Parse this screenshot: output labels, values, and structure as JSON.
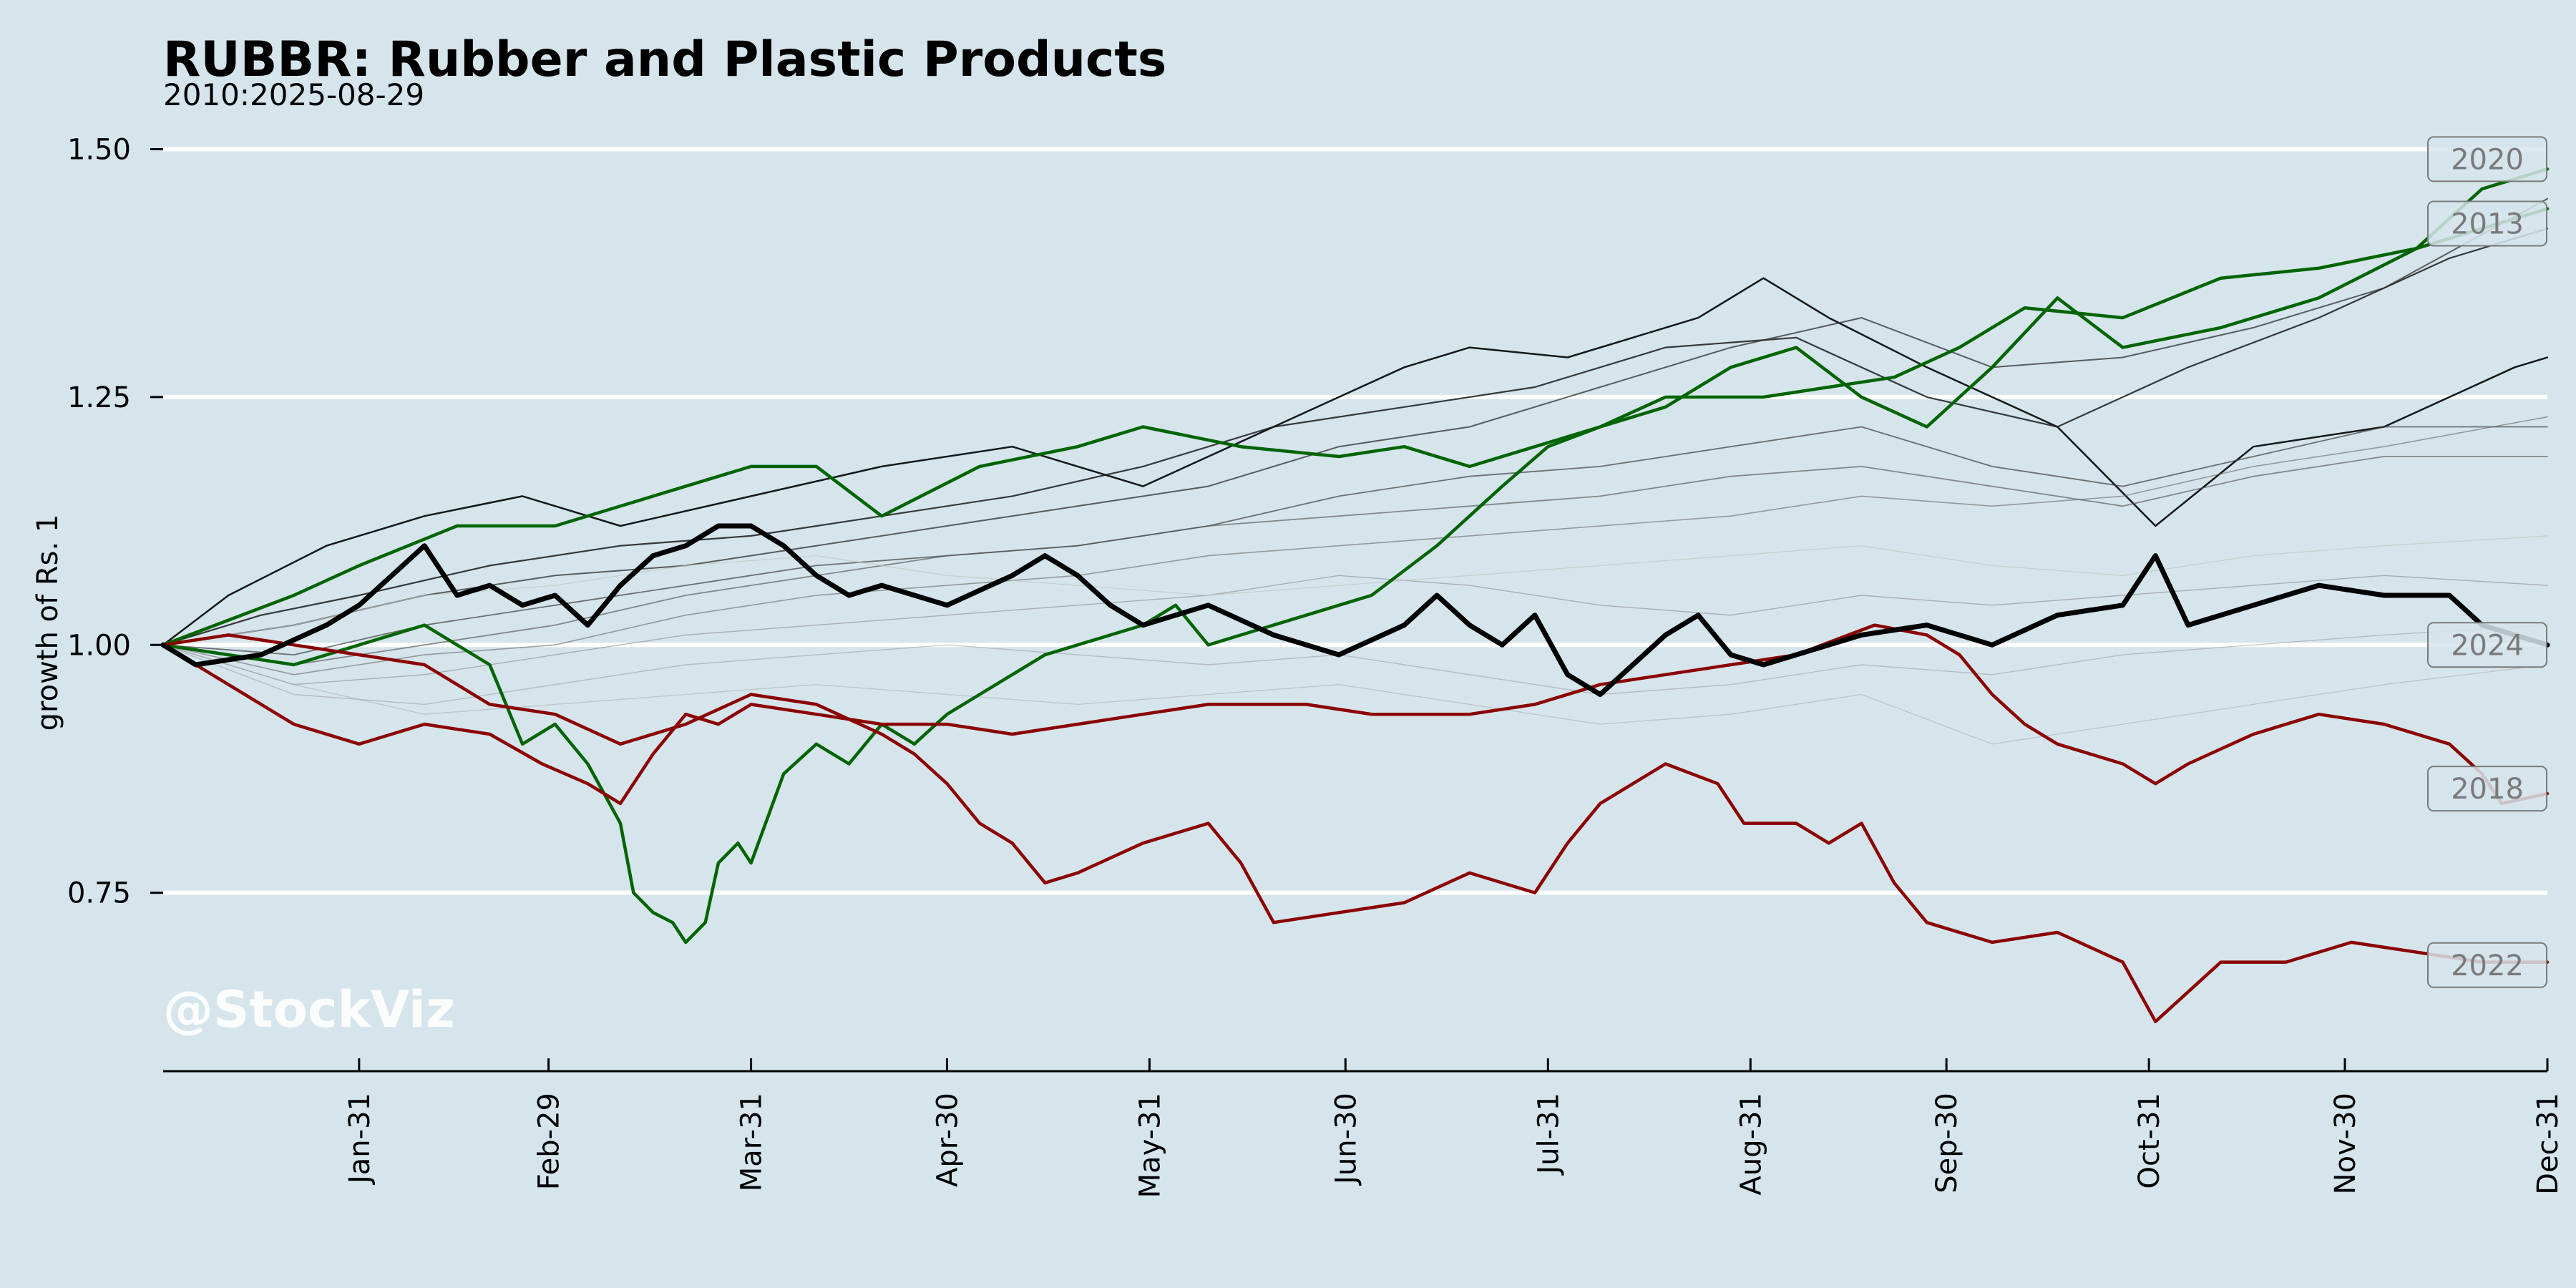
{
  "chart_data": {
    "type": "line",
    "title": "RUBBR: Rubber and Plastic Products",
    "subtitle": "2010:2025-08-29",
    "xlabel": "",
    "ylabel": "growth of Rs. 1",
    "xlim": [
      0,
      365
    ],
    "ylim": [
      0.57,
      1.6
    ],
    "yticks": [
      {
        "value": 0.75,
        "label": "0.75"
      },
      {
        "value": 1.0,
        "label": "1.00"
      },
      {
        "value": 1.25,
        "label": "1.25"
      },
      {
        "value": 1.5,
        "label": "1.50"
      }
    ],
    "xticks": [
      {
        "day": 30,
        "label": "Jan-31"
      },
      {
        "day": 59,
        "label": "Feb-29"
      },
      {
        "day": 90,
        "label": "Mar-31"
      },
      {
        "day": 120,
        "label": "Apr-30"
      },
      {
        "day": 151,
        "label": "May-31"
      },
      {
        "day": 181,
        "label": "Jun-30"
      },
      {
        "day": 212,
        "label": "Jul-31"
      },
      {
        "day": 243,
        "label": "Aug-31"
      },
      {
        "day": 273,
        "label": "Sep-30"
      },
      {
        "day": 304,
        "label": "Oct-31"
      },
      {
        "day": 334,
        "label": "Nov-30"
      },
      {
        "day": 365,
        "label": "Dec-31"
      }
    ],
    "grid": "horizontal",
    "watermark": "@StockViz",
    "colors": {
      "background": "#d6e5ec",
      "up": "#006400",
      "down": "#8b0000",
      "neutral": "#000000",
      "grid": "#ffffff"
    },
    "series": [
      {
        "name": "",
        "color": "#000000",
        "width": 2.5,
        "opacity": 0.9,
        "x": [
          0,
          10,
          25,
          40,
          55,
          70,
          90,
          110,
          130,
          150,
          170,
          190,
          200,
          215,
          235,
          245,
          255,
          270,
          290,
          305,
          320,
          340,
          360,
          365
        ],
        "y": [
          1.0,
          1.05,
          1.1,
          1.13,
          1.15,
          1.12,
          1.15,
          1.18,
          1.2,
          1.16,
          1.22,
          1.28,
          1.3,
          1.29,
          1.33,
          1.37,
          1.33,
          1.28,
          1.22,
          1.12,
          1.2,
          1.22,
          1.28,
          1.29
        ]
      },
      {
        "name": "",
        "color": "#1a1a1a",
        "width": 2.2,
        "opacity": 0.85,
        "x": [
          0,
          15,
          30,
          50,
          70,
          90,
          110,
          130,
          150,
          170,
          190,
          210,
          230,
          250,
          270,
          290,
          310,
          330,
          350,
          365
        ],
        "y": [
          1.0,
          1.03,
          1.05,
          1.08,
          1.1,
          1.11,
          1.13,
          1.15,
          1.18,
          1.22,
          1.24,
          1.26,
          1.3,
          1.31,
          1.25,
          1.22,
          1.28,
          1.33,
          1.39,
          1.42
        ]
      },
      {
        "name": "",
        "color": "#2e2e2e",
        "width": 2.0,
        "opacity": 0.75,
        "x": [
          0,
          20,
          40,
          60,
          80,
          100,
          120,
          140,
          160,
          180,
          200,
          220,
          240,
          260,
          280,
          300,
          320,
          340,
          365
        ],
        "y": [
          1.0,
          1.02,
          1.05,
          1.07,
          1.08,
          1.1,
          1.12,
          1.14,
          1.16,
          1.2,
          1.22,
          1.26,
          1.3,
          1.33,
          1.28,
          1.29,
          1.32,
          1.36,
          1.45
        ]
      },
      {
        "name": "",
        "color": "#3d3d3d",
        "width": 1.8,
        "opacity": 0.7,
        "x": [
          0,
          20,
          40,
          60,
          80,
          100,
          120,
          140,
          160,
          180,
          200,
          220,
          240,
          260,
          280,
          300,
          320,
          340,
          365
        ],
        "y": [
          1.0,
          0.99,
          1.02,
          1.04,
          1.06,
          1.08,
          1.09,
          1.1,
          1.12,
          1.15,
          1.17,
          1.18,
          1.2,
          1.22,
          1.18,
          1.16,
          1.19,
          1.22,
          1.22
        ]
      },
      {
        "name": "",
        "color": "#555555",
        "width": 1.8,
        "opacity": 0.65,
        "x": [
          0,
          20,
          40,
          60,
          80,
          100,
          120,
          140,
          160,
          180,
          200,
          220,
          240,
          260,
          280,
          300,
          320,
          340,
          365
        ],
        "y": [
          1.0,
          0.98,
          1.0,
          1.02,
          1.05,
          1.07,
          1.09,
          1.1,
          1.12,
          1.13,
          1.14,
          1.15,
          1.17,
          1.18,
          1.16,
          1.14,
          1.17,
          1.19,
          1.19
        ]
      },
      {
        "name": "",
        "color": "#666666",
        "width": 1.6,
        "opacity": 0.6,
        "x": [
          0,
          20,
          40,
          60,
          80,
          100,
          120,
          140,
          160,
          180,
          200,
          220,
          240,
          260,
          280,
          300,
          320,
          340,
          365
        ],
        "y": [
          1.0,
          0.97,
          0.99,
          1.0,
          1.03,
          1.05,
          1.06,
          1.07,
          1.09,
          1.1,
          1.11,
          1.12,
          1.13,
          1.15,
          1.14,
          1.15,
          1.18,
          1.2,
          1.23
        ]
      },
      {
        "name": "",
        "color": "#888888",
        "width": 1.4,
        "opacity": 0.6,
        "x": [
          0,
          20,
          40,
          60,
          80,
          100,
          120,
          140,
          160,
          180,
          200,
          220,
          240,
          260,
          280,
          300,
          320,
          340,
          365
        ],
        "y": [
          1.0,
          0.96,
          0.97,
          0.99,
          1.01,
          1.02,
          1.03,
          1.04,
          1.05,
          1.07,
          1.06,
          1.04,
          1.03,
          1.05,
          1.04,
          1.05,
          1.06,
          1.07,
          1.06
        ]
      },
      {
        "name": "",
        "color": "#9a9a9a",
        "width": 1.4,
        "opacity": 0.55,
        "x": [
          0,
          20,
          40,
          60,
          80,
          100,
          120,
          140,
          160,
          180,
          200,
          220,
          240,
          260,
          280,
          300,
          320,
          340,
          365
        ],
        "y": [
          1.0,
          0.95,
          0.94,
          0.96,
          0.98,
          0.99,
          1.0,
          0.99,
          0.98,
          0.99,
          0.97,
          0.95,
          0.96,
          0.98,
          0.97,
          0.99,
          1.0,
          1.01,
          1.02
        ]
      },
      {
        "name": "",
        "color": "#a8a8a8",
        "width": 1.3,
        "opacity": 0.55,
        "x": [
          0,
          20,
          40,
          60,
          80,
          100,
          120,
          140,
          160,
          180,
          200,
          220,
          240,
          260,
          280,
          300,
          320,
          340,
          365
        ],
        "y": [
          1.0,
          0.96,
          0.93,
          0.94,
          0.95,
          0.96,
          0.95,
          0.94,
          0.95,
          0.96,
          0.94,
          0.92,
          0.93,
          0.95,
          0.9,
          0.92,
          0.94,
          0.96,
          0.98
        ]
      },
      {
        "name": "",
        "color": "#c0c8c0",
        "width": 1.3,
        "opacity": 0.7,
        "x": [
          0,
          20,
          40,
          60,
          80,
          100,
          120,
          140,
          160,
          180,
          200,
          220,
          240,
          260,
          280,
          300,
          320,
          340,
          365
        ],
        "y": [
          1.0,
          1.02,
          1.05,
          1.06,
          1.08,
          1.09,
          1.07,
          1.06,
          1.05,
          1.06,
          1.07,
          1.08,
          1.09,
          1.1,
          1.08,
          1.07,
          1.09,
          1.1,
          1.11
        ]
      },
      {
        "name": "2013",
        "color": "#006400",
        "width": 4.5,
        "opacity": 1,
        "x": [
          0,
          8,
          20,
          30,
          45,
          60,
          75,
          90,
          100,
          110,
          125,
          140,
          150,
          165,
          180,
          190,
          200,
          210,
          220,
          230,
          245,
          255,
          265,
          275,
          285,
          300,
          315,
          330,
          345,
          355,
          365
        ],
        "y": [
          1.0,
          1.02,
          1.05,
          1.08,
          1.12,
          1.12,
          1.15,
          1.18,
          1.18,
          1.13,
          1.18,
          1.2,
          1.22,
          1.2,
          1.19,
          1.2,
          1.18,
          1.2,
          1.22,
          1.25,
          1.25,
          1.26,
          1.27,
          1.3,
          1.34,
          1.33,
          1.37,
          1.38,
          1.4,
          1.42,
          1.44
        ]
      },
      {
        "name": "2020",
        "color": "#006400",
        "width": 4.5,
        "opacity": 1,
        "x": [
          0,
          10,
          20,
          30,
          40,
          50,
          55,
          60,
          65,
          70,
          72,
          75,
          78,
          80,
          83,
          85,
          88,
          90,
          95,
          100,
          105,
          110,
          115,
          120,
          125,
          130,
          135,
          140,
          150,
          155,
          160,
          165,
          175,
          185,
          195,
          205,
          212,
          220,
          230,
          240,
          250,
          260,
          270,
          280,
          290,
          300,
          315,
          330,
          345,
          355,
          365
        ],
        "y": [
          1.0,
          0.99,
          0.98,
          1.0,
          1.02,
          0.98,
          0.9,
          0.92,
          0.88,
          0.82,
          0.75,
          0.73,
          0.72,
          0.7,
          0.72,
          0.78,
          0.8,
          0.78,
          0.87,
          0.9,
          0.88,
          0.92,
          0.9,
          0.93,
          0.95,
          0.97,
          0.99,
          1.0,
          1.02,
          1.04,
          1.0,
          1.01,
          1.03,
          1.05,
          1.1,
          1.16,
          1.2,
          1.22,
          1.24,
          1.28,
          1.3,
          1.25,
          1.22,
          1.28,
          1.35,
          1.3,
          1.32,
          1.35,
          1.4,
          1.46,
          1.48
        ]
      },
      {
        "name": "2018",
        "color": "#8b0000",
        "width": 4.5,
        "opacity": 1,
        "x": [
          0,
          10,
          20,
          30,
          40,
          50,
          58,
          65,
          70,
          75,
          80,
          85,
          90,
          100,
          110,
          120,
          130,
          140,
          150,
          160,
          175,
          185,
          200,
          210,
          220,
          230,
          240,
          250,
          258,
          262,
          270,
          275,
          280,
          285,
          290,
          300,
          305,
          310,
          320,
          330,
          340,
          350,
          355,
          358,
          365
        ],
        "y": [
          1.0,
          0.96,
          0.92,
          0.9,
          0.92,
          0.91,
          0.88,
          0.86,
          0.84,
          0.89,
          0.93,
          0.92,
          0.94,
          0.93,
          0.92,
          0.92,
          0.91,
          0.92,
          0.93,
          0.94,
          0.94,
          0.93,
          0.93,
          0.94,
          0.96,
          0.97,
          0.98,
          0.99,
          1.01,
          1.02,
          1.01,
          0.99,
          0.95,
          0.92,
          0.9,
          0.88,
          0.86,
          0.88,
          0.91,
          0.93,
          0.92,
          0.9,
          0.87,
          0.84,
          0.85
        ]
      },
      {
        "name": "2022",
        "color": "#8b0000",
        "width": 4.5,
        "opacity": 1,
        "x": [
          0,
          10,
          20,
          30,
          40,
          50,
          60,
          70,
          80,
          90,
          100,
          110,
          115,
          120,
          125,
          130,
          135,
          140,
          150,
          160,
          165,
          170,
          180,
          190,
          200,
          210,
          215,
          220,
          225,
          230,
          238,
          242,
          250,
          255,
          260,
          265,
          270,
          280,
          290,
          300,
          305,
          310,
          315,
          325,
          335,
          345,
          355,
          365
        ],
        "y": [
          1.0,
          1.01,
          1.0,
          0.99,
          0.98,
          0.94,
          0.93,
          0.9,
          0.92,
          0.95,
          0.94,
          0.91,
          0.89,
          0.86,
          0.82,
          0.8,
          0.76,
          0.77,
          0.8,
          0.82,
          0.78,
          0.72,
          0.73,
          0.74,
          0.77,
          0.75,
          0.8,
          0.84,
          0.86,
          0.88,
          0.86,
          0.82,
          0.82,
          0.8,
          0.82,
          0.76,
          0.72,
          0.7,
          0.71,
          0.68,
          0.62,
          0.65,
          0.68,
          0.68,
          0.7,
          0.69,
          0.68,
          0.68
        ]
      },
      {
        "name": "2024",
        "color": "#000000",
        "width": 7,
        "opacity": 1,
        "x": [
          0,
          5,
          15,
          25,
          30,
          35,
          40,
          45,
          50,
          55,
          60,
          65,
          70,
          75,
          80,
          85,
          90,
          95,
          100,
          105,
          110,
          120,
          130,
          135,
          140,
          145,
          150,
          155,
          160,
          170,
          180,
          190,
          195,
          200,
          205,
          210,
          215,
          220,
          225,
          230,
          235,
          240,
          245,
          250,
          260,
          270,
          280,
          290,
          300,
          305,
          310,
          320,
          330,
          340,
          350,
          355,
          360,
          365
        ],
        "y": [
          1.0,
          0.98,
          0.99,
          1.02,
          1.04,
          1.07,
          1.1,
          1.05,
          1.06,
          1.04,
          1.05,
          1.02,
          1.06,
          1.09,
          1.1,
          1.12,
          1.12,
          1.1,
          1.07,
          1.05,
          1.06,
          1.04,
          1.07,
          1.09,
          1.07,
          1.04,
          1.02,
          1.03,
          1.04,
          1.01,
          0.99,
          1.02,
          1.05,
          1.02,
          1.0,
          1.03,
          0.97,
          0.95,
          0.98,
          1.01,
          1.03,
          0.99,
          0.98,
          0.99,
          1.01,
          1.02,
          1.0,
          1.03,
          1.04,
          1.09,
          1.02,
          1.04,
          1.06,
          1.05,
          1.05,
          1.02,
          1.01,
          1.0
        ]
      }
    ],
    "end_labels": [
      {
        "label": "2020",
        "value": 1.49
      },
      {
        "label": "2013",
        "value": 1.425
      },
      {
        "label": "2024",
        "value": 1.0
      },
      {
        "label": "2018",
        "value": 0.855
      },
      {
        "label": "2022",
        "value": 0.677
      }
    ]
  }
}
